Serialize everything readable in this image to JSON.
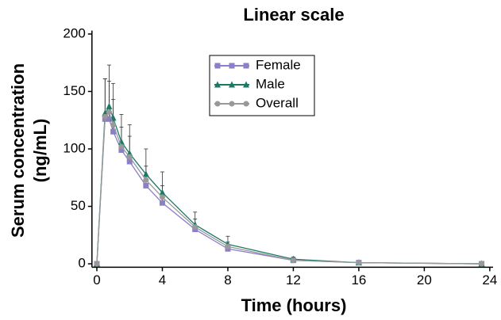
{
  "chart_data": {
    "type": "line",
    "title": "Linear scale",
    "x_label": "Time (hours)",
    "y_label": [
      "Serum concentration",
      "(ng/mL)"
    ],
    "x": [
      0,
      0.5,
      0.75,
      1,
      1.5,
      2,
      3,
      4,
      6,
      8,
      12,
      16,
      23.5
    ],
    "series": [
      {
        "name": "Female",
        "color": "#8b7fc7",
        "marker": "square",
        "values": [
          0,
          126,
          126,
          115,
          99,
          89,
          68,
          53,
          30,
          13,
          3,
          1,
          0
        ],
        "errors": [
          0,
          35,
          33,
          28,
          20,
          22,
          17,
          15,
          9,
          6,
          2,
          1,
          0
        ]
      },
      {
        "name": "Male",
        "color": "#1a7a66",
        "marker": "triangle",
        "values": [
          0,
          131,
          137,
          127,
          106,
          96,
          78,
          62,
          34,
          17,
          4,
          1,
          0
        ],
        "errors": [
          0,
          30,
          36,
          30,
          24,
          25,
          22,
          18,
          11,
          7,
          2,
          1,
          0
        ]
      },
      {
        "name": "Overall",
        "color": "#999999",
        "marker": "circle",
        "values": [
          0,
          128,
          132,
          121,
          102,
          93,
          73,
          58,
          32,
          15,
          3,
          1,
          0
        ]
      }
    ],
    "xlim": [
      -0.3,
      24.2
    ],
    "ylim": [
      -3,
      203
    ],
    "xticks": [
      0,
      4,
      8,
      12,
      16,
      20,
      24
    ],
    "yticks": [
      0,
      50,
      100,
      150,
      200
    ]
  }
}
